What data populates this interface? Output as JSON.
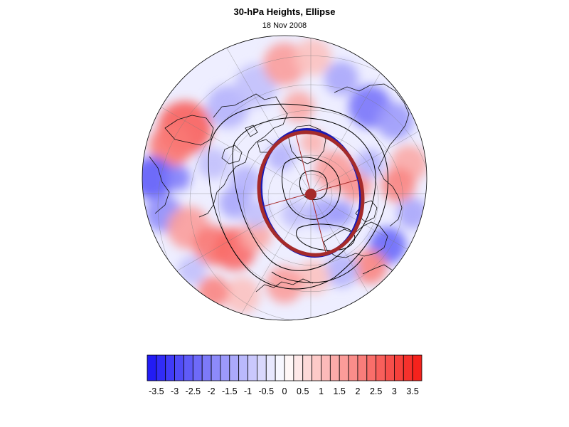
{
  "title": "30-hPa Heights, Ellipse",
  "date": "18 Nov 2008",
  "colors": {
    "negative_max": "#1a14f5",
    "positive_max": "#f51a14",
    "ellipse_red": "#a52a2a",
    "ellipse_blue": "#1a1ab4",
    "contour": "#000000"
  },
  "colorbar": {
    "labels": [
      "-3.5",
      "-3",
      "-2.5",
      "-2",
      "-1.5",
      "-1",
      "-0.5",
      "0",
      "0.5",
      "1",
      "1.5",
      "2",
      "2.5",
      "3",
      "3.5"
    ],
    "levels": [
      -3.75,
      -3.5,
      -3.25,
      -3,
      -2.75,
      -2.5,
      -2.25,
      -2,
      -1.75,
      -1.5,
      -1.25,
      -1,
      -0.75,
      -0.5,
      -0.25,
      0,
      0.25,
      0.5,
      0.75,
      1,
      1.25,
      1.5,
      1.75,
      2,
      2.25,
      2.5,
      2.75,
      3,
      3.25,
      3.5,
      3.75
    ]
  },
  "map": {
    "projection": "orthographic-polar",
    "features": [
      "anomaly-shading",
      "coastlines",
      "graticule",
      "height-contours",
      "fitted-ellipse",
      "ellipse-centroid",
      "ellipse-axes"
    ]
  }
}
